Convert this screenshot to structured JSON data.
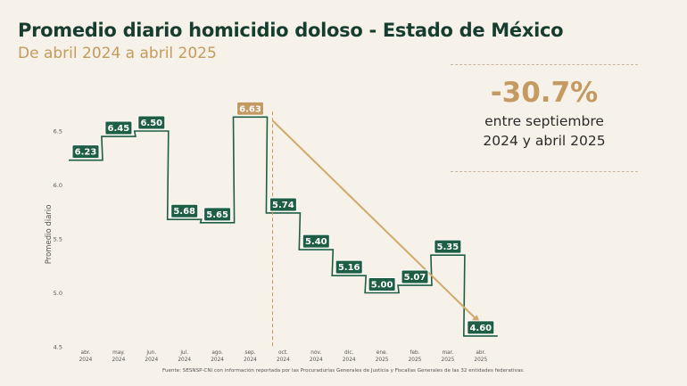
{
  "header": {
    "title": "Promedio diario homicidio doloso - Estado de México",
    "subtitle": "De abril 2024 a abril 2025"
  },
  "callout": {
    "percent": "-30.7%",
    "line1": "entre septiembre",
    "line2": "2024 y abril 2025"
  },
  "source": "Fuente: SESNSP-CNI con información reportada por las Procuradurías Generales de Justicia y Fiscalías Generales de las 32 entidades federativas.",
  "colors": {
    "line": "#1d5e45",
    "label_bg": "#1d5e45",
    "highlight": "#c49a62",
    "axis_text": "#555555"
  },
  "chart_data": {
    "type": "line",
    "title": "Promedio diario homicidio doloso - Estado de México",
    "subtitle": "De abril 2024 a abril 2025",
    "ylabel": "Promedio diario",
    "xlabel": "",
    "ylim": [
      4.5,
      6.75
    ],
    "yticks": [
      "4.5",
      "5.0",
      "5.5",
      "6.0",
      "6.5"
    ],
    "grid": false,
    "step": true,
    "categories": [
      [
        "abr.",
        "2024"
      ],
      [
        "may.",
        "2024"
      ],
      [
        "jun.",
        "2024"
      ],
      [
        "jul.",
        "2024"
      ],
      [
        "ago.",
        "2024"
      ],
      [
        "sep.",
        "2024"
      ],
      [
        "oct.",
        "2024"
      ],
      [
        "nov.",
        "2024"
      ],
      [
        "dic.",
        "2024"
      ],
      [
        "ene.",
        "2025"
      ],
      [
        "feb.",
        "2025"
      ],
      [
        "mar.",
        "2025"
      ],
      [
        "abr.",
        "2025"
      ]
    ],
    "values": [
      6.23,
      6.45,
      6.5,
      5.68,
      5.65,
      6.63,
      5.74,
      5.4,
      5.16,
      5.0,
      5.07,
      5.35,
      4.6
    ],
    "labels": [
      "6.23",
      "6.45",
      "6.50",
      "5.68",
      "5.65",
      "6.63",
      "5.74",
      "5.40",
      "5.16",
      "5.00",
      "5.07",
      "5.35",
      "4.60"
    ],
    "highlight_index": 5,
    "trend": {
      "from_index": 5,
      "to_index": 12
    }
  }
}
